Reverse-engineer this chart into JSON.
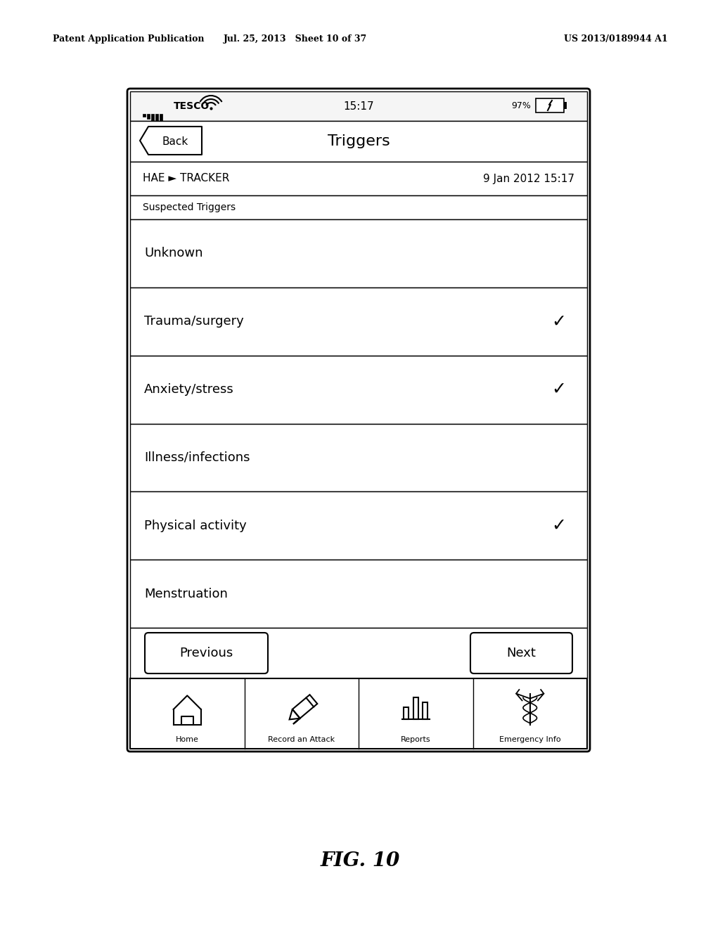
{
  "bg_color": "#ffffff",
  "patent_header_left": "Patent Application Publication",
  "patent_header_mid": "Jul. 25, 2013   Sheet 10 of 37",
  "patent_header_right": "US 2013/0189944 A1",
  "fig_label": "FIG. 10",
  "nav_bar_title": "Triggers",
  "hae_left": "HAE ► TRACKER",
  "hae_right": "9 Jan 2012 15:17",
  "section_label": "Suspected Triggers",
  "menu_items": [
    "Unknown",
    "Trauma/surgery",
    "Anxiety/stress",
    "Illness/infections",
    "Physical activity",
    "Menstruation"
  ],
  "checked_items": [
    1,
    2,
    4
  ],
  "prev_button": "Previous",
  "next_button": "Next",
  "tab_labels": [
    "Home",
    "Record an Attack",
    "Reports",
    "Emergency Info"
  ]
}
